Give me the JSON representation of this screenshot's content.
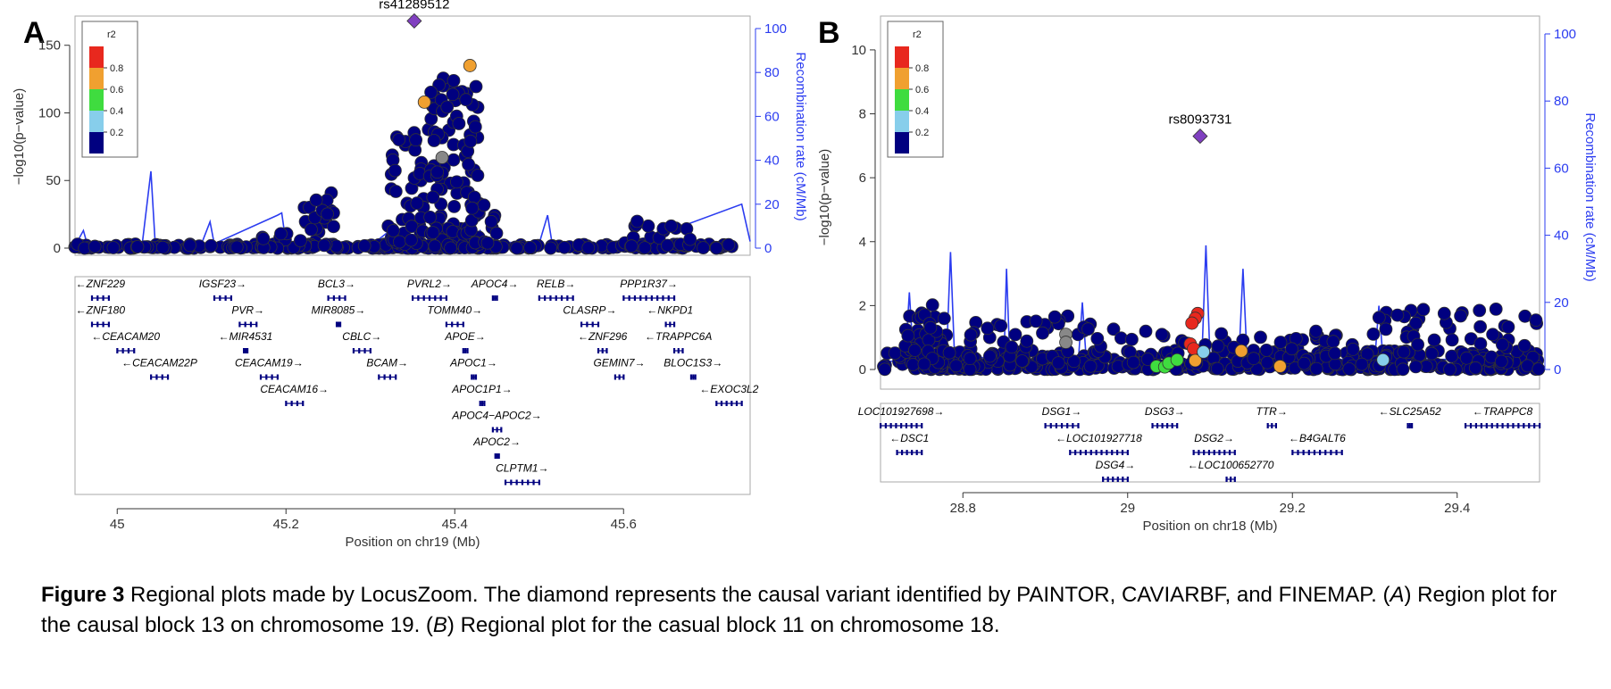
{
  "caption": {
    "label": "Figure 3",
    "text_1": " Regional plots made by LocusZoom. The diamond represents the causal variant identified by PAINTOR, CAVIARBF, and FINEMAP. (",
    "a": "A",
    "text_2": ") Region plot for the causal block 13 on chromosome 19. (",
    "b": "B",
    "text_3": ") Regional plot for the casual block 11 on chromosome 18."
  },
  "colors": {
    "r2_0_2": "#000080",
    "r2_2_4": "#87ceeb",
    "r2_4_6": "#3fdc3f",
    "r2_6_8": "#f0a030",
    "r2_8_1": "#e8281e",
    "recomb": "#2b3cf0",
    "lead": "#8040c0",
    "missing": "#888888"
  },
  "chart_data": [
    {
      "type": "scatter",
      "panel": "A",
      "xlabel": "Position on chr19 (Mb)",
      "ylabel": "−log10(p−value)",
      "ylabel_right": "Recombination rate (cM/Mb)",
      "xlim": [
        44.95,
        45.75
      ],
      "ylim": [
        0,
        165
      ],
      "ylim_right": [
        0,
        100
      ],
      "x_ticks": [
        "45",
        "45.2",
        "45.4",
        "45.6"
      ],
      "x_tick_values": [
        45.0,
        45.2,
        45.4,
        45.6
      ],
      "y_ticks": [
        "0",
        "50",
        "100",
        "150"
      ],
      "y_tick_values": [
        0,
        50,
        100,
        150
      ],
      "y_right_ticks": [
        "0",
        "20",
        "40",
        "60",
        "80",
        "100"
      ],
      "legend_title": "r2",
      "legend_labels": [
        "0.8",
        "0.6",
        "0.4",
        "0.2"
      ],
      "lead": {
        "label": "rs41289512",
        "x": 45.352,
        "y": 168
      },
      "highlighted": [
        {
          "x": 45.418,
          "y": 135,
          "r2": "0.6-0.8"
        },
        {
          "x": 45.364,
          "y": 108,
          "r2": "0.6-0.8"
        },
        {
          "x": 45.385,
          "y": 67,
          "r2": "none"
        }
      ],
      "clusters": [
        {
          "x0": 44.95,
          "x1": 45.75,
          "ymax": 3,
          "n": 260
        },
        {
          "x0": 45.22,
          "x1": 45.26,
          "ymax": 44,
          "n": 30
        },
        {
          "x0": 45.32,
          "x1": 45.37,
          "ymax": 90,
          "n": 55
        },
        {
          "x0": 45.37,
          "x1": 45.43,
          "ymax": 128,
          "n": 110
        },
        {
          "x0": 45.42,
          "x1": 45.45,
          "ymax": 38,
          "n": 15
        },
        {
          "x0": 45.6,
          "x1": 45.68,
          "ymax": 22,
          "n": 30
        },
        {
          "x0": 45.13,
          "x1": 45.22,
          "ymax": 12,
          "n": 20
        }
      ],
      "recombination": [
        [
          44.95,
          1
        ],
        [
          44.96,
          8
        ],
        [
          44.965,
          1
        ],
        [
          45.03,
          3
        ],
        [
          45.04,
          35
        ],
        [
          45.045,
          2
        ],
        [
          45.1,
          2
        ],
        [
          45.11,
          12
        ],
        [
          45.115,
          2
        ],
        [
          45.19,
          15
        ],
        [
          45.195,
          16
        ],
        [
          45.2,
          2
        ],
        [
          45.3,
          1
        ],
        [
          45.33,
          10
        ],
        [
          45.34,
          3
        ],
        [
          45.42,
          2
        ],
        [
          45.43,
          8
        ],
        [
          45.44,
          3
        ],
        [
          45.5,
          2
        ],
        [
          45.51,
          15
        ],
        [
          45.515,
          3
        ],
        [
          45.55,
          1
        ],
        [
          45.6,
          2
        ],
        [
          45.62,
          3
        ],
        [
          45.74,
          20
        ],
        [
          45.75,
          3
        ]
      ],
      "genes": [
        {
          "name": "ZNF229",
          "dir": "-",
          "x0": 44.97,
          "x1": 44.99,
          "row": 0
        },
        {
          "name": "IGSF23",
          "dir": "+",
          "x0": 45.115,
          "x1": 45.135,
          "row": 0
        },
        {
          "name": "BCL3",
          "dir": "+",
          "x0": 45.25,
          "x1": 45.27,
          "row": 0
        },
        {
          "name": "PVRL2",
          "dir": "+",
          "x0": 45.35,
          "x1": 45.39,
          "row": 0
        },
        {
          "name": "APOC4",
          "dir": "+",
          "x0": 45.445,
          "x1": 45.45,
          "row": 0
        },
        {
          "name": "RELB",
          "dir": "+",
          "x0": 45.5,
          "x1": 45.54,
          "row": 0
        },
        {
          "name": "PPP1R37",
          "dir": "+",
          "x0": 45.6,
          "x1": 45.66,
          "row": 0
        },
        {
          "name": "ZNF180",
          "dir": "-",
          "x0": 44.97,
          "x1": 44.99,
          "row": 1
        },
        {
          "name": "PVR",
          "dir": "+",
          "x0": 45.145,
          "x1": 45.165,
          "row": 1
        },
        {
          "name": "MIR8085",
          "dir": "+",
          "x0": 45.26,
          "x1": 45.262,
          "row": 1
        },
        {
          "name": "TOMM40",
          "dir": "+",
          "x0": 45.39,
          "x1": 45.41,
          "row": 1
        },
        {
          "name": "CLASRP",
          "dir": "+",
          "x0": 45.55,
          "x1": 45.57,
          "row": 1
        },
        {
          "name": "NKPD1",
          "dir": "-",
          "x0": 45.65,
          "x1": 45.66,
          "row": 1
        },
        {
          "name": "CEACAM20",
          "dir": "-",
          "x0": 45.0,
          "x1": 45.02,
          "row": 2
        },
        {
          "name": "MIR4531",
          "dir": "-",
          "x0": 45.15,
          "x1": 45.152,
          "row": 2
        },
        {
          "name": "CBLC",
          "dir": "+",
          "x0": 45.28,
          "x1": 45.3,
          "row": 2
        },
        {
          "name": "APOE",
          "dir": "+",
          "x0": 45.41,
          "x1": 45.415,
          "row": 2
        },
        {
          "name": "ZNF296",
          "dir": "-",
          "x0": 45.57,
          "x1": 45.58,
          "row": 2
        },
        {
          "name": "TRAPPC6A",
          "dir": "-",
          "x0": 45.66,
          "x1": 45.67,
          "row": 2
        },
        {
          "name": "CEACAM22P",
          "dir": "-",
          "x0": 45.04,
          "x1": 45.06,
          "row": 3
        },
        {
          "name": "CEACAM19",
          "dir": "+",
          "x0": 45.17,
          "x1": 45.19,
          "row": 3
        },
        {
          "name": "BCAM",
          "dir": "+",
          "x0": 45.31,
          "x1": 45.33,
          "row": 3
        },
        {
          "name": "APOC1",
          "dir": "+",
          "x0": 45.42,
          "x1": 45.425,
          "row": 3
        },
        {
          "name": "GEMIN7",
          "dir": "+",
          "x0": 45.59,
          "x1": 45.6,
          "row": 3
        },
        {
          "name": "BLOC1S3",
          "dir": "+",
          "x0": 45.68,
          "x1": 45.685,
          "row": 3
        },
        {
          "name": "CEACAM16",
          "dir": "+",
          "x0": 45.2,
          "x1": 45.22,
          "row": 4
        },
        {
          "name": "APOC1P1",
          "dir": "+",
          "x0": 45.43,
          "x1": 45.435,
          "row": 4
        },
        {
          "name": "EXOC3L2",
          "dir": "-",
          "x0": 45.71,
          "x1": 45.74,
          "row": 4
        },
        {
          "name": "APOC4−APOC2",
          "dir": "+",
          "x0": 45.445,
          "x1": 45.455,
          "row": 5
        },
        {
          "name": "APOC2",
          "dir": "+",
          "x0": 45.448,
          "x1": 45.452,
          "row": 6
        },
        {
          "name": "CLPTM1",
          "dir": "+",
          "x0": 45.46,
          "x1": 45.5,
          "row": 7
        }
      ]
    },
    {
      "type": "scatter",
      "panel": "B",
      "xlabel": "Position on chr18 (Mb)",
      "ylabel": "−log10(p−value)",
      "ylabel_right": "Recombination rate (cM/Mb)",
      "xlim": [
        28.7,
        29.5
      ],
      "ylim": [
        0,
        10.5
      ],
      "ylim_right": [
        0,
        100
      ],
      "x_ticks": [
        "28.8",
        "29",
        "29.2",
        "29.4"
      ],
      "x_tick_values": [
        28.8,
        29.0,
        29.2,
        29.4
      ],
      "y_ticks": [
        "0",
        "2",
        "4",
        "6",
        "8",
        "10"
      ],
      "y_tick_values": [
        0,
        2,
        4,
        6,
        8,
        10
      ],
      "y_right_ticks": [
        "0",
        "20",
        "40",
        "60",
        "80",
        "100"
      ],
      "legend_title": "r2",
      "legend_labels": [
        "0.8",
        "0.6",
        "0.4",
        "0.2"
      ],
      "lead": {
        "label": "rs8093731",
        "x": 29.088,
        "y": 7.3
      },
      "highlighted": [
        {
          "x": 29.085,
          "y": 1.75,
          "r2": "0.8-1"
        },
        {
          "x": 29.082,
          "y": 1.6,
          "r2": "0.8-1"
        },
        {
          "x": 29.078,
          "y": 1.45,
          "r2": "0.8-1"
        },
        {
          "x": 29.076,
          "y": 0.8,
          "r2": "0.8-1"
        },
        {
          "x": 29.08,
          "y": 0.65,
          "r2": "0.8-1"
        },
        {
          "x": 29.082,
          "y": 0.28,
          "r2": "0.6-0.8"
        },
        {
          "x": 29.138,
          "y": 0.58,
          "r2": "0.6-0.8"
        },
        {
          "x": 29.185,
          "y": 0.1,
          "r2": "0.6-0.8"
        },
        {
          "x": 29.035,
          "y": 0.1,
          "r2": "0.4-0.6"
        },
        {
          "x": 29.045,
          "y": 0.08,
          "r2": "0.4-0.6"
        },
        {
          "x": 29.05,
          "y": 0.2,
          "r2": "0.4-0.6"
        },
        {
          "x": 29.06,
          "y": 0.3,
          "r2": "0.4-0.6"
        },
        {
          "x": 29.092,
          "y": 0.55,
          "r2": "0.2-0.4"
        },
        {
          "x": 29.31,
          "y": 0.3,
          "r2": "0.2-0.4"
        },
        {
          "x": 28.925,
          "y": 1.1,
          "r2": "none"
        },
        {
          "x": 28.925,
          "y": 0.85,
          "r2": "none"
        }
      ],
      "clusters": [
        {
          "x0": 28.7,
          "x1": 29.5,
          "ymax": 0.6,
          "n": 380
        },
        {
          "x0": 28.73,
          "x1": 28.78,
          "ymax": 2.05,
          "n": 60
        },
        {
          "x0": 28.78,
          "x1": 29.0,
          "ymax": 1.7,
          "n": 60
        },
        {
          "x0": 29.0,
          "x1": 29.3,
          "ymax": 1.2,
          "n": 80
        },
        {
          "x0": 29.3,
          "x1": 29.5,
          "ymax": 1.9,
          "n": 70
        }
      ],
      "recombination": [
        [
          28.7,
          2
        ],
        [
          28.73,
          3
        ],
        [
          28.735,
          23
        ],
        [
          28.74,
          3
        ],
        [
          28.78,
          3
        ],
        [
          28.785,
          35
        ],
        [
          28.79,
          3
        ],
        [
          28.85,
          4
        ],
        [
          28.853,
          30
        ],
        [
          28.857,
          3
        ],
        [
          28.94,
          2
        ],
        [
          28.945,
          20
        ],
        [
          28.95,
          2
        ],
        [
          29.09,
          3
        ],
        [
          29.095,
          37
        ],
        [
          29.1,
          3
        ],
        [
          29.135,
          3
        ],
        [
          29.14,
          30
        ],
        [
          29.145,
          3
        ],
        [
          29.3,
          3
        ],
        [
          29.305,
          19
        ],
        [
          29.31,
          3
        ],
        [
          29.4,
          3
        ],
        [
          29.5,
          6
        ]
      ],
      "genes": [
        {
          "name": "LOC101927698",
          "dir": "+",
          "x0": 28.7,
          "x1": 28.75,
          "row": 0
        },
        {
          "name": "DSG1",
          "dir": "+",
          "x0": 28.9,
          "x1": 28.94,
          "row": 0
        },
        {
          "name": "DSG3",
          "dir": "+",
          "x0": 29.03,
          "x1": 29.06,
          "row": 0
        },
        {
          "name": "TTR",
          "dir": "+",
          "x0": 29.17,
          "x1": 29.18,
          "row": 0
        },
        {
          "name": "SLC25A52",
          "dir": "-",
          "x0": 29.34,
          "x1": 29.345,
          "row": 0
        },
        {
          "name": "TRAPPC8",
          "dir": "-",
          "x0": 29.41,
          "x1": 29.5,
          "row": 0
        },
        {
          "name": "DSC1",
          "dir": "-",
          "x0": 28.72,
          "x1": 28.75,
          "row": 1
        },
        {
          "name": "LOC101927718",
          "dir": "-",
          "x0": 28.93,
          "x1": 29.0,
          "row": 1
        },
        {
          "name": "DSG2",
          "dir": "+",
          "x0": 29.08,
          "x1": 29.13,
          "row": 1
        },
        {
          "name": "B4GALT6",
          "dir": "-",
          "x0": 29.2,
          "x1": 29.26,
          "row": 1
        },
        {
          "name": "DSG4",
          "dir": "+",
          "x0": 28.97,
          "x1": 29.0,
          "row": 2
        },
        {
          "name": "LOC100652770",
          "dir": "-",
          "x0": 29.12,
          "x1": 29.13,
          "row": 2
        }
      ]
    }
  ]
}
